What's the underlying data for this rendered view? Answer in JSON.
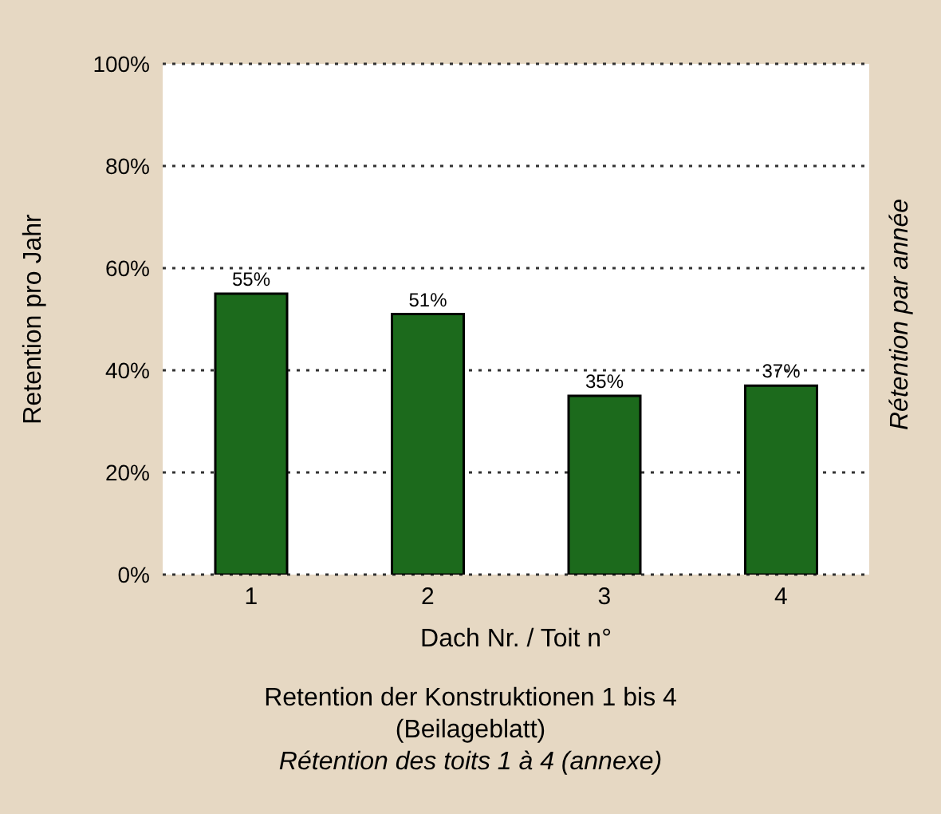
{
  "chart_data": {
    "type": "bar",
    "title": "Retention der Konstruktionen 1 bis 4 (Beilageblatt)",
    "subtitle": "Rétention des toits 1 à 4 (annexe)",
    "xlabel": "Dach Nr. / Toit n°",
    "ylabel": "Retention pro Jahr",
    "y2label": "Rétention par année",
    "categories": [
      "1",
      "2",
      "3",
      "4"
    ],
    "values": [
      55,
      51,
      35,
      37
    ],
    "color": "#1c6a1c",
    "ylim": [
      0,
      100
    ],
    "yticks": [
      {
        "value": 0,
        "label": "0%"
      },
      {
        "value": 20,
        "label": "20%"
      },
      {
        "value": 40,
        "label": "40%"
      },
      {
        "value": 60,
        "label": "60%"
      },
      {
        "value": 80,
        "label": "80%"
      },
      {
        "value": 100,
        "label": "100%"
      }
    ],
    "value_labels": [
      "55%",
      "51%",
      "35%",
      "37%"
    ],
    "grid": "y"
  }
}
